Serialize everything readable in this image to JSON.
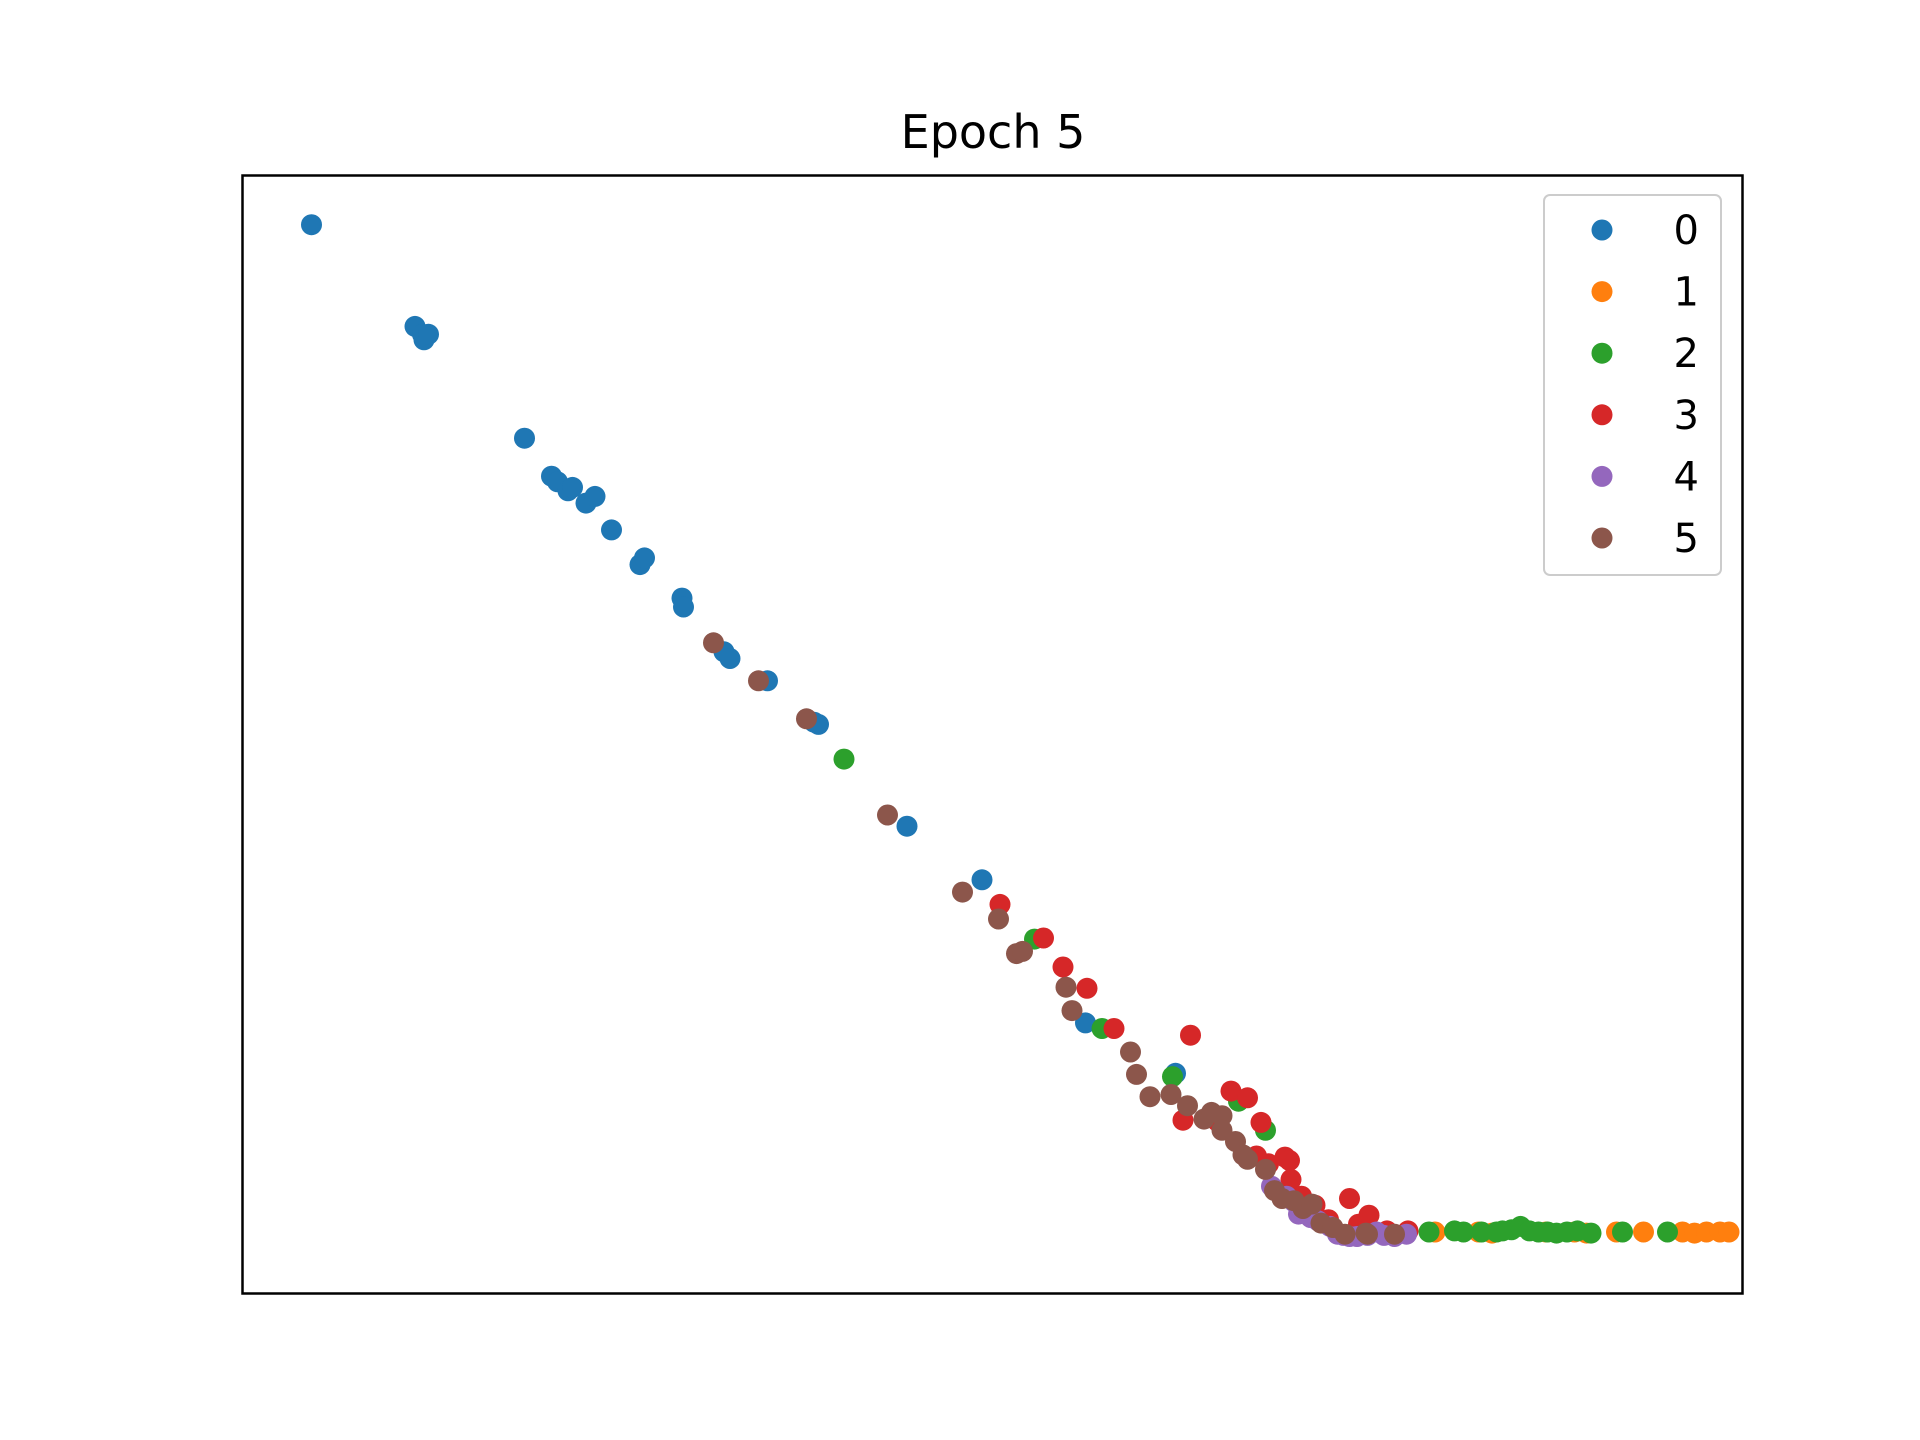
{
  "chart_data": {
    "type": "scatter",
    "title": "Epoch 5",
    "xlabel": "",
    "ylabel": "",
    "xlim": [
      0,
      100
    ],
    "ylim": [
      0,
      100
    ],
    "ticks": "none",
    "grid": false,
    "legend_position": "top-right",
    "series": [
      {
        "name": "0",
        "color": "#1f77b4",
        "points": [
          [
            4.6,
            95.6
          ],
          [
            11.5,
            86.5
          ],
          [
            12.0,
            85.8
          ],
          [
            12.1,
            85.3
          ],
          [
            12.4,
            85.8
          ],
          [
            18.8,
            76.5
          ],
          [
            20.6,
            73.1
          ],
          [
            21.0,
            72.6
          ],
          [
            21.7,
            71.8
          ],
          [
            22.0,
            72.1
          ],
          [
            22.9,
            70.7
          ],
          [
            23.5,
            71.3
          ],
          [
            24.6,
            68.3
          ],
          [
            26.5,
            65.2
          ],
          [
            26.8,
            65.8
          ],
          [
            29.3,
            62.2
          ],
          [
            29.4,
            61.4
          ],
          [
            32.1,
            57.4
          ],
          [
            32.5,
            56.8
          ],
          [
            35.0,
            54.8
          ],
          [
            38.1,
            51.1
          ],
          [
            38.4,
            50.9
          ],
          [
            44.3,
            41.8
          ],
          [
            49.3,
            37.0
          ],
          [
            56.2,
            24.2
          ],
          [
            62.2,
            19.7
          ]
        ]
      },
      {
        "name": "1",
        "color": "#ff7f0e",
        "points": [
          [
            79.5,
            5.5
          ],
          [
            82.4,
            5.5
          ],
          [
            83.3,
            5.4
          ],
          [
            86.9,
            5.5
          ],
          [
            88.8,
            5.5
          ],
          [
            89.6,
            5.4
          ],
          [
            91.6,
            5.5
          ],
          [
            93.4,
            5.5
          ],
          [
            96.0,
            5.5
          ],
          [
            96.8,
            5.4
          ],
          [
            97.6,
            5.5
          ],
          [
            98.5,
            5.5
          ],
          [
            99.1,
            5.5
          ]
        ]
      },
      {
        "name": "2",
        "color": "#2ca02c",
        "points": [
          [
            40.1,
            47.8
          ],
          [
            52.8,
            31.7
          ],
          [
            57.3,
            23.7
          ],
          [
            62.0,
            19.4
          ],
          [
            66.4,
            17.2
          ],
          [
            68.2,
            14.6
          ],
          [
            79.1,
            5.5
          ],
          [
            80.8,
            5.6
          ],
          [
            81.4,
            5.5
          ],
          [
            82.6,
            5.5
          ],
          [
            83.6,
            5.5
          ],
          [
            84.0,
            5.6
          ],
          [
            84.6,
            5.7
          ],
          [
            85.2,
            6.0
          ],
          [
            85.8,
            5.6
          ],
          [
            86.4,
            5.5
          ],
          [
            87.0,
            5.5
          ],
          [
            87.6,
            5.4
          ],
          [
            88.3,
            5.5
          ],
          [
            89.0,
            5.6
          ],
          [
            89.9,
            5.4
          ],
          [
            92.0,
            5.5
          ],
          [
            95.0,
            5.5
          ]
        ]
      },
      {
        "name": "3",
        "color": "#d62728",
        "points": [
          [
            50.5,
            34.8
          ],
          [
            53.4,
            31.8
          ],
          [
            54.7,
            29.2
          ],
          [
            56.3,
            27.3
          ],
          [
            58.1,
            23.7
          ],
          [
            63.2,
            23.1
          ],
          [
            65.9,
            18.1
          ],
          [
            67.0,
            17.5
          ],
          [
            62.7,
            15.5
          ],
          [
            64.7,
            15.8
          ],
          [
            65.0,
            15.4
          ],
          [
            67.9,
            15.3
          ],
          [
            68.4,
            11.6
          ],
          [
            69.5,
            12.2
          ],
          [
            69.8,
            11.9
          ],
          [
            69.9,
            10.2
          ],
          [
            67.6,
            12.3
          ],
          [
            70.6,
            8.7
          ],
          [
            71.5,
            7.9
          ],
          [
            72.4,
            6.6
          ],
          [
            73.8,
            8.5
          ],
          [
            74.4,
            6.2
          ],
          [
            75.1,
            7.0
          ],
          [
            76.3,
            5.6
          ],
          [
            77.7,
            5.6
          ]
        ]
      },
      {
        "name": "4",
        "color": "#9467bd",
        "points": [
          [
            68.6,
            9.6
          ],
          [
            69.6,
            8.7
          ],
          [
            70.1,
            8.2
          ],
          [
            70.4,
            7.1
          ],
          [
            70.9,
            7.6
          ],
          [
            71.2,
            6.8
          ],
          [
            71.7,
            6.5
          ],
          [
            72.5,
            6.0
          ],
          [
            73.0,
            5.3
          ],
          [
            73.4,
            5.2
          ],
          [
            73.8,
            5.1
          ],
          [
            74.3,
            5.1
          ],
          [
            75.0,
            5.2
          ],
          [
            75.6,
            5.5
          ],
          [
            76.1,
            5.2
          ],
          [
            76.8,
            5.1
          ],
          [
            77.6,
            5.3
          ]
        ]
      },
      {
        "name": "5",
        "color": "#8c564b",
        "points": [
          [
            31.4,
            58.2
          ],
          [
            34.4,
            54.8
          ],
          [
            37.6,
            51.4
          ],
          [
            43.0,
            42.8
          ],
          [
            48.0,
            35.9
          ],
          [
            50.4,
            33.5
          ],
          [
            51.6,
            30.4
          ],
          [
            52.0,
            30.6
          ],
          [
            54.9,
            27.4
          ],
          [
            55.3,
            25.3
          ],
          [
            59.2,
            21.6
          ],
          [
            59.6,
            19.6
          ],
          [
            60.5,
            17.6
          ],
          [
            61.9,
            17.8
          ],
          [
            63.0,
            16.8
          ],
          [
            64.1,
            15.6
          ],
          [
            64.6,
            16.2
          ],
          [
            65.3,
            15.9
          ],
          [
            65.3,
            14.6
          ],
          [
            66.2,
            13.6
          ],
          [
            66.7,
            12.4
          ],
          [
            67.0,
            12.0
          ],
          [
            68.2,
            11.1
          ],
          [
            68.8,
            9.2
          ],
          [
            69.3,
            8.5
          ],
          [
            70.1,
            8.3
          ],
          [
            70.7,
            7.6
          ],
          [
            71.3,
            8.0
          ],
          [
            71.9,
            6.3
          ],
          [
            72.7,
            5.9
          ],
          [
            73.5,
            5.3
          ],
          [
            74.9,
            5.4
          ],
          [
            75.0,
            5.3
          ],
          [
            76.8,
            5.3
          ]
        ]
      }
    ]
  }
}
